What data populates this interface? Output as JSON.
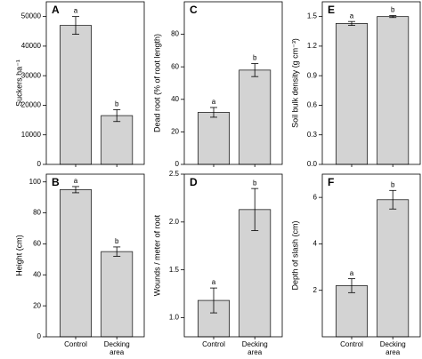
{
  "chart_data": [
    {
      "type": "bar",
      "panel_label": "A",
      "y_label": "Suckers ha⁻¹",
      "categories": [
        null,
        null
      ],
      "values": [
        47000,
        16500
      ],
      "errors": [
        3000,
        2000
      ],
      "annotations": [
        "a",
        "b"
      ],
      "color": "#d3d3d3",
      "ylim": [
        0,
        55000
      ],
      "yticks": [
        0,
        10000,
        20000,
        30000,
        40000,
        50000
      ]
    },
    {
      "type": "bar",
      "panel_label": "B",
      "y_label": "Height (cm)",
      "categories": [
        "Control",
        "Decking area"
      ],
      "values": [
        95,
        55
      ],
      "errors": [
        2,
        3
      ],
      "annotations": [
        "a",
        "b"
      ],
      "color": "#d3d3d3",
      "ylim": [
        0,
        105
      ],
      "yticks": [
        0,
        20,
        40,
        60,
        80,
        100
      ]
    },
    {
      "type": "bar",
      "panel_label": "C",
      "y_label": "Dead root (% of root length)",
      "categories": [
        null,
        null
      ],
      "values": [
        32,
        58
      ],
      "errors": [
        3,
        4
      ],
      "annotations": [
        "a",
        "b"
      ],
      "color": "#d3d3d3",
      "ylim": [
        0,
        100
      ],
      "yticks": [
        0,
        20,
        40,
        60,
        80
      ]
    },
    {
      "type": "bar",
      "panel_label": "D",
      "y_label": "Wounds / meter of root",
      "categories": [
        "Control",
        "Decking area"
      ],
      "values": [
        1.18,
        2.13
      ],
      "errors": [
        0.13,
        0.22
      ],
      "annotations": [
        "a",
        "b"
      ],
      "color": "#d3d3d3",
      "ylim": [
        0.8,
        2.5
      ],
      "yticks": [
        {
          "value": 1,
          "label": "1.0"
        },
        1.5,
        {
          "value": 2,
          "label": "2.0"
        },
        2.5
      ]
    },
    {
      "type": "bar",
      "panel_label": "E",
      "y_label": "Soil bulk density (g cm⁻³)",
      "categories": [
        null,
        null
      ],
      "values": [
        1.43,
        1.5
      ],
      "errors": [
        0.02,
        0.01
      ],
      "annotations": [
        "a",
        "b"
      ],
      "color": "#d3d3d3",
      "ylim": [
        0,
        1.65
      ],
      "yticks": [
        {
          "value": 0,
          "label": "0.0"
        },
        0.3,
        0.6,
        0.9,
        1.2,
        1.5
      ]
    },
    {
      "type": "bar",
      "panel_label": "F",
      "y_label": "Depth of slash (cm)",
      "categories": [
        "Control",
        "Decking area"
      ],
      "values": [
        2.2,
        5.9
      ],
      "errors": [
        0.3,
        0.4
      ],
      "annotations": [
        "a",
        "b"
      ],
      "color": "#d3d3d3",
      "ylim": [
        0,
        7
      ],
      "yticks": [
        2,
        4,
        6
      ]
    }
  ]
}
